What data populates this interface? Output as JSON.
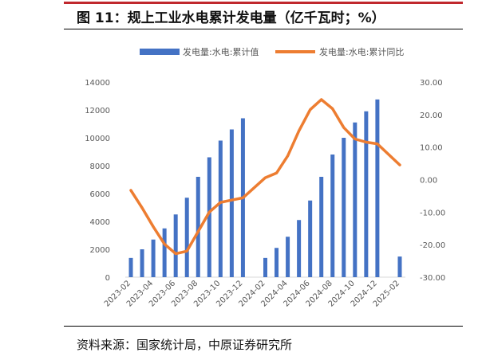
{
  "title": "图 11：规上工业水电累计发电量（亿千瓦时；%）",
  "source": "资料来源：国家统计局，中原证券研究所",
  "colors": {
    "bar": "#4472c4",
    "line": "#ed7d31",
    "axis_text": "#595959",
    "accent_rule": "#c0282d"
  },
  "chart_data": {
    "type": "bar+line",
    "categories": [
      "2023-02",
      "2023-03",
      "2023-04",
      "2023-05",
      "2023-06",
      "2023-07",
      "2023-08",
      "2023-09",
      "2023-10",
      "2023-11",
      "2023-12",
      "2024-01",
      "2024-02",
      "2024-03",
      "2024-04",
      "2024-05",
      "2024-06",
      "2024-07",
      "2024-08",
      "2024-09",
      "2024-10",
      "2024-11",
      "2024-12",
      "2025-01",
      "2025-02"
    ],
    "tick_labels": [
      "2023-02",
      "2023-04",
      "2023-06",
      "2023-08",
      "2023-10",
      "2023-12",
      "2024-02",
      "2024-04",
      "2024-06",
      "2024-08",
      "2024-10",
      "2024-12",
      "2025-02"
    ],
    "series": [
      {
        "name": "发电量:水电:累计值",
        "type": "bar",
        "axis": "left",
        "values": [
          1380,
          2000,
          2700,
          3500,
          4500,
          5700,
          7200,
          8600,
          9800,
          10600,
          11400,
          null,
          1380,
          2100,
          2900,
          4100,
          5500,
          7200,
          8800,
          10000,
          11100,
          11900,
          12750,
          null,
          1480
        ]
      },
      {
        "name": "发电量:水电:累计同比",
        "type": "line",
        "axis": "right",
        "values": [
          -3.3,
          -8.7,
          -14.5,
          -19.8,
          -22.8,
          -22.0,
          -16.0,
          -10.0,
          -7.0,
          -6.3,
          -5.6,
          null,
          0.6,
          2.0,
          7.3,
          15.0,
          21.5,
          24.6,
          21.8,
          16.0,
          12.5,
          11.5,
          11.0,
          null,
          4.5
        ]
      }
    ],
    "y_left": {
      "min": 0,
      "max": 14000,
      "ticks": [
        "0",
        "2000",
        "4000",
        "6000",
        "8000",
        "10000",
        "12000",
        "14000"
      ]
    },
    "y_right": {
      "min": -30,
      "max": 30,
      "ticks": [
        "-30.00",
        "-20.00",
        "-10.00",
        "0.00",
        "10.00",
        "20.00",
        "30.00"
      ]
    },
    "legend_position": "top",
    "grid": false
  }
}
